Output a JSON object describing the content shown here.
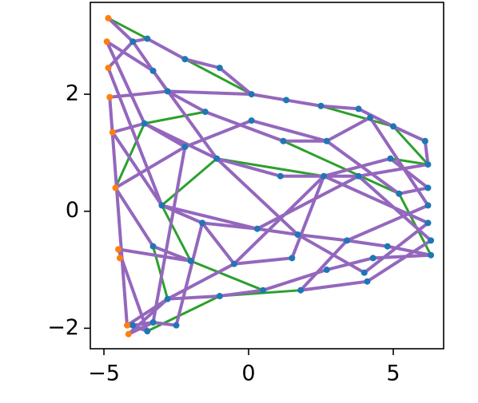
{
  "chart_data": {
    "type": "scatter",
    "xlim": [
      -5.47,
      6.74
    ],
    "ylim": [
      -2.35,
      3.57
    ],
    "xticks": [
      {
        "value": -5,
        "label": "−5"
      },
      0,
      5
    ],
    "yticks": [
      {
        "value": -2,
        "label": "−2"
      },
      0,
      2
    ],
    "grid": false,
    "lines": [
      {
        "color": "#2ca02c",
        "x": [
          -4.85,
          -3.5,
          -2.2,
          0.1,
          2.5,
          5.0,
          6.2,
          4.9,
          2.6,
          -1.1,
          -3.0,
          -2.0,
          0.5,
          2.7,
          4.3,
          6.3,
          5.2,
          1.2,
          -1.5,
          -3.6,
          -4.6,
          -3.3,
          -2.8,
          -4.2,
          -3.5,
          -1.0,
          1.8,
          4.1
        ],
        "values": [
          3.3,
          2.95,
          2.6,
          2.0,
          1.8,
          1.45,
          0.8,
          0.9,
          0.6,
          0.9,
          0.1,
          -0.85,
          -1.35,
          -1.0,
          -0.8,
          -0.75,
          0.3,
          1.2,
          1.7,
          1.5,
          0.4,
          -0.6,
          -1.5,
          -1.95,
          -2.05,
          -1.45,
          -1.35,
          -1.2
        ]
      },
      {
        "color": "#9467bd",
        "x": [
          -4.85,
          -4.0,
          -3.5,
          -2.2,
          -1.0,
          0.1,
          1.3,
          2.5,
          3.8,
          5.0,
          6.1,
          6.2,
          3.8,
          1.1,
          -1.1,
          -3.6,
          -4.7,
          -3.0,
          -1.6,
          0.3,
          1.7,
          3.4,
          4.8,
          6.3,
          4.3,
          2.7,
          0.5,
          -1.0,
          -2.8,
          -4.15,
          -3.3,
          -2.5,
          -1.6,
          -0.5,
          1.5,
          2.6,
          4.9,
          6.2,
          5.2,
          2.7,
          1.2,
          -1.5,
          -2.8,
          -3.3,
          -4.9,
          -3.6,
          -2.2,
          -4.6,
          -3.3,
          -2.0,
          -4.5,
          -3.5,
          -4.0,
          -3.3,
          -2.2,
          0.1,
          2.7,
          4.2,
          6.2,
          3.4,
          1.8,
          4.1,
          6.3,
          3.8,
          0.3,
          -3.0,
          -4.85,
          -4.0,
          -3.3,
          -1.1,
          1.7,
          4.0,
          6.2,
          2.6,
          -0.5,
          -2.8,
          -4.2,
          -4.8,
          -2.8,
          0.1
        ],
        "values": [
          3.3,
          2.9,
          2.95,
          2.6,
          2.45,
          2.0,
          1.9,
          1.8,
          1.75,
          1.45,
          1.2,
          0.8,
          0.6,
          0.6,
          0.9,
          1.5,
          1.35,
          0.1,
          -0.2,
          -0.3,
          -0.4,
          -0.5,
          -0.6,
          -0.75,
          -0.8,
          -1.0,
          -1.35,
          -1.45,
          -1.5,
          -2.1,
          -1.9,
          -1.95,
          -0.2,
          -0.9,
          -0.8,
          0.6,
          0.9,
          0.4,
          0.3,
          1.2,
          1.2,
          1.7,
          2.05,
          2.4,
          2.9,
          1.5,
          1.1,
          0.4,
          -0.6,
          -0.85,
          -0.65,
          -2.05,
          -1.95,
          -1.9,
          1.1,
          1.55,
          1.2,
          1.6,
          0.1,
          -0.5,
          -1.35,
          -1.2,
          -0.5,
          0.6,
          -0.3,
          0.1,
          2.45,
          2.9,
          2.4,
          0.9,
          -0.4,
          -1.05,
          -0.2,
          0.6,
          -0.9,
          -1.5,
          -1.95,
          1.95,
          2.05,
          2.0
        ]
      }
    ],
    "series": [
      {
        "color": "#1f77b4",
        "x": [
          -4.0,
          -3.5,
          -2.2,
          -1.0,
          0.1,
          1.3,
          2.5,
          3.8,
          4.2,
          5.0,
          6.1,
          6.2,
          6.2,
          6.2,
          6.2,
          6.3,
          6.3,
          -3.3,
          -2.8,
          -1.5,
          0.1,
          1.2,
          2.7,
          4.9,
          -3.6,
          -2.2,
          -1.1,
          1.1,
          2.6,
          3.8,
          5.2,
          -3.0,
          -1.6,
          0.3,
          1.7,
          3.4,
          4.8,
          -3.3,
          -2.0,
          -0.5,
          1.5,
          2.7,
          4.0,
          4.3,
          -2.8,
          -1.0,
          0.5,
          1.8,
          4.1,
          -3.3,
          -2.5,
          -3.5,
          -4.0
        ],
        "values": [
          2.9,
          2.95,
          2.6,
          2.45,
          2.0,
          1.9,
          1.8,
          1.75,
          1.6,
          1.45,
          1.2,
          0.8,
          0.4,
          0.1,
          -0.2,
          -0.5,
          -0.75,
          2.4,
          2.05,
          1.7,
          1.55,
          1.2,
          1.2,
          0.9,
          1.5,
          1.1,
          0.9,
          0.6,
          0.6,
          0.6,
          0.3,
          0.1,
          -0.2,
          -0.3,
          -0.4,
          -0.5,
          -0.6,
          -0.6,
          -0.85,
          -0.9,
          -0.8,
          -1.0,
          -1.05,
          -0.8,
          -1.5,
          -1.45,
          -1.35,
          -1.35,
          -1.2,
          -1.9,
          -1.95,
          -2.05,
          -1.95
        ]
      },
      {
        "color": "#ff7f0e",
        "x": [
          -4.85,
          -4.9,
          -4.85,
          -4.8,
          -4.7,
          -4.6,
          -4.5,
          -4.45,
          -4.2,
          -4.15
        ],
        "values": [
          3.3,
          2.9,
          2.45,
          1.95,
          1.35,
          0.4,
          -0.65,
          -0.8,
          -1.95,
          -2.1
        ]
      }
    ]
  }
}
